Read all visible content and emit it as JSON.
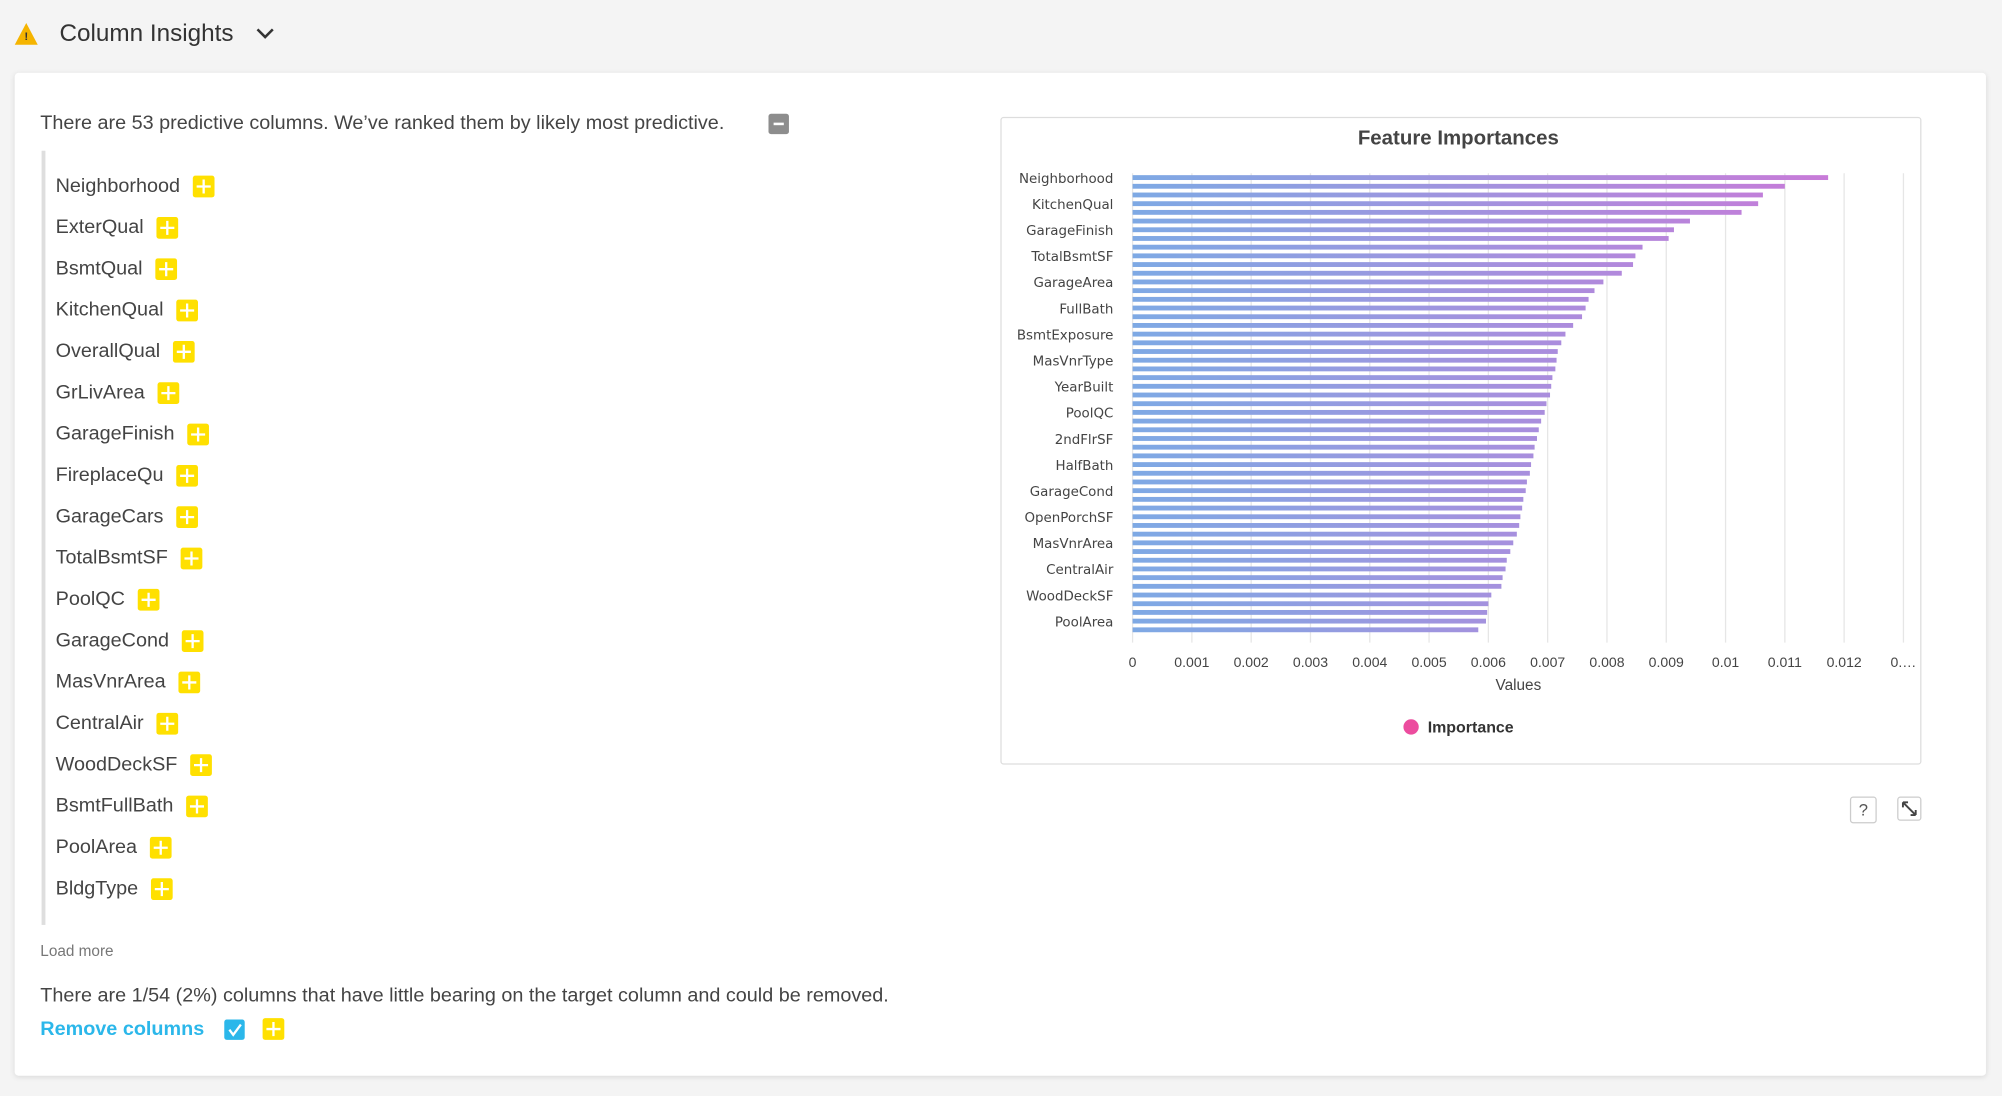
{
  "header": {
    "title": "Column Insights"
  },
  "intro": "There are 53 predictive columns. We’ve ranked them by likely most predictive.",
  "columns": [
    "Neighborhood",
    "ExterQual",
    "BsmtQual",
    "KitchenQual",
    "OverallQual",
    "GrLivArea",
    "GarageFinish",
    "FireplaceQu",
    "GarageCars",
    "TotalBsmtSF",
    "PoolQC",
    "GarageCond",
    "MasVnrArea",
    "CentralAir",
    "WoodDeckSF",
    "BsmtFullBath",
    "PoolArea",
    "BldgType"
  ],
  "load_more": "Load more",
  "removal_note": "There are 1/54 (2%) columns that have little bearing on the target column and could be removed.",
  "remove_action": "Remove columns",
  "chart_data": {
    "type": "hbar",
    "title": "Feature Importances",
    "x_label": "Values",
    "categories": [
      "Neighborhood",
      null,
      null,
      "KitchenQual",
      null,
      null,
      "GarageFinish",
      null,
      null,
      "TotalBsmtSF",
      null,
      null,
      "GarageArea",
      null,
      null,
      "FullBath",
      null,
      null,
      "BsmtExposure",
      null,
      null,
      "MasVnrType",
      null,
      null,
      "YearBuilt",
      null,
      null,
      "PoolQC",
      null,
      null,
      "2ndFlrSF",
      null,
      null,
      "HalfBath",
      null,
      null,
      "GarageCond",
      null,
      null,
      "OpenPorchSF",
      null,
      null,
      "MasVnrArea",
      null,
      null,
      "CentralAir",
      null,
      null,
      "WoodDeckSF",
      null,
      null,
      "PoolArea",
      null
    ],
    "series": [
      {
        "name": "Importance",
        "color": "#ec4c9e",
        "gradient": [
          "#7ea9e4",
          "#c97ad8"
        ],
        "values": [
          0.01173,
          0.011,
          0.01063,
          0.01055,
          0.01027,
          0.0094,
          0.00913,
          0.00904,
          0.0086,
          0.00848,
          0.00844,
          0.00825,
          0.00794,
          0.00779,
          0.00769,
          0.00764,
          0.00758,
          0.00743,
          0.0073,
          0.00723,
          0.00717,
          0.00715,
          0.00713,
          0.00708,
          0.00706,
          0.00704,
          0.00698,
          0.00695,
          0.00689,
          0.00685,
          0.00682,
          0.00678,
          0.00676,
          0.00672,
          0.0067,
          0.00665,
          0.00663,
          0.00659,
          0.00657,
          0.00654,
          0.00652,
          0.00648,
          0.00642,
          0.00637,
          0.00631,
          0.00629,
          0.00624,
          0.00622,
          0.00605,
          0.006,
          0.00598,
          0.00596,
          0.00583
        ]
      }
    ],
    "xlim": [
      0,
      0.013
    ],
    "xticks": [
      0,
      0.001,
      0.002,
      0.003,
      0.004,
      0.005,
      0.006,
      0.007,
      0.008,
      0.009,
      0.01,
      0.011,
      0.012,
      {
        "value": 0.013,
        "label": "0.…"
      }
    ],
    "grid": true,
    "legend": "bottom"
  }
}
